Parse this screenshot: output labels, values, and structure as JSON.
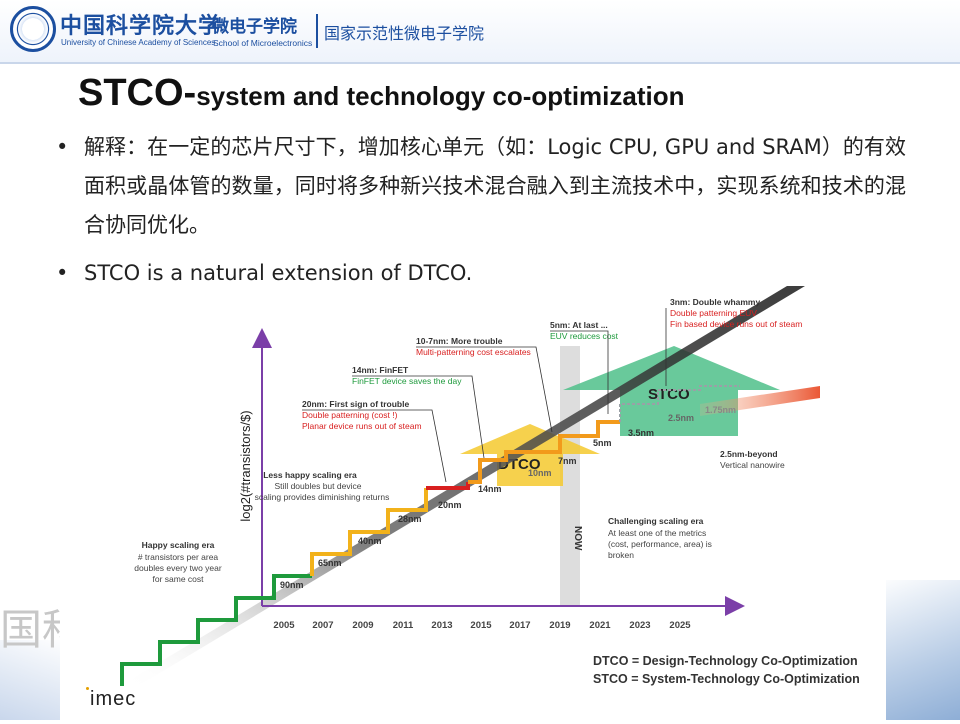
{
  "header": {
    "university_cn": "中国科学院大学",
    "university_en": "University of Chinese Academy of Sciences",
    "school_cn": "微电子学院",
    "school_en": "School of Microelectronics",
    "national_school": "国家示范性微电子学院"
  },
  "title": {
    "main": "STCO-",
    "sub": "system and technology co-optimization"
  },
  "bullets": [
    "解释：在一定的芯片尺寸下，增加核心单元（如：Logic CPU, GPU and SRAM）的有效面积或晶体管的数量，同时将多种新兴技术混合融入到主流技术中，实现系统和技术的混合协同优化。",
    "STCO is a natural extension of DTCO."
  ],
  "bullet_symbol": "•",
  "watermark": "国科",
  "figure": {
    "ylabel": "log2(#transistors/$)",
    "years": [
      "2005",
      "2007",
      "2009",
      "2011",
      "2013",
      "2015",
      "2017",
      "2019",
      "2021",
      "2023",
      "2025"
    ],
    "nodes": [
      "90nm",
      "65nm",
      "40nm",
      "28nm",
      "20nm",
      "14nm",
      "10nm",
      "7nm",
      "5nm",
      "3.5nm",
      "2.5nm",
      "1.75nm"
    ],
    "now_label": "NOW",
    "dtco_label": "DTCO",
    "stco_label": "STCO",
    "notes": {
      "happy_title": "Happy scaling era",
      "happy_body": [
        "# transistors per area",
        "doubles every two year",
        "for same cost"
      ],
      "less_title": "Less happy scaling era",
      "less_body": [
        "Still doubles but device",
        "scaling provides diminishing returns"
      ],
      "n20_title": "20nm: First sign of trouble",
      "n20_body": [
        "Double patterning (cost !)",
        "Planar device runs out of steam"
      ],
      "n14_title": "14nm: FinFET",
      "n14_body": "FinFET device saves the day",
      "n10_title": "10-7nm: More trouble",
      "n10_body": "Multi-patterning cost escalates",
      "n5_title": "5nm: At last ...",
      "n5_body": "EUV reduces cost",
      "n3_title": "3nm: Double whammy",
      "n3_body": [
        "Double patterning EUV",
        "Fin based device runs out of steam"
      ],
      "beyond_title": "2.5nm-beyond",
      "beyond_body": "Vertical nanowire",
      "challenge_title": "Challenging scaling era",
      "challenge_body": [
        "At least one of the metrics",
        "(cost, performance, area) is",
        "broken"
      ]
    },
    "legend": [
      "DTCO = Design-Technology Co-Optimization",
      "STCO = System-Technology Co-Optimization"
    ],
    "logo": "imec"
  }
}
